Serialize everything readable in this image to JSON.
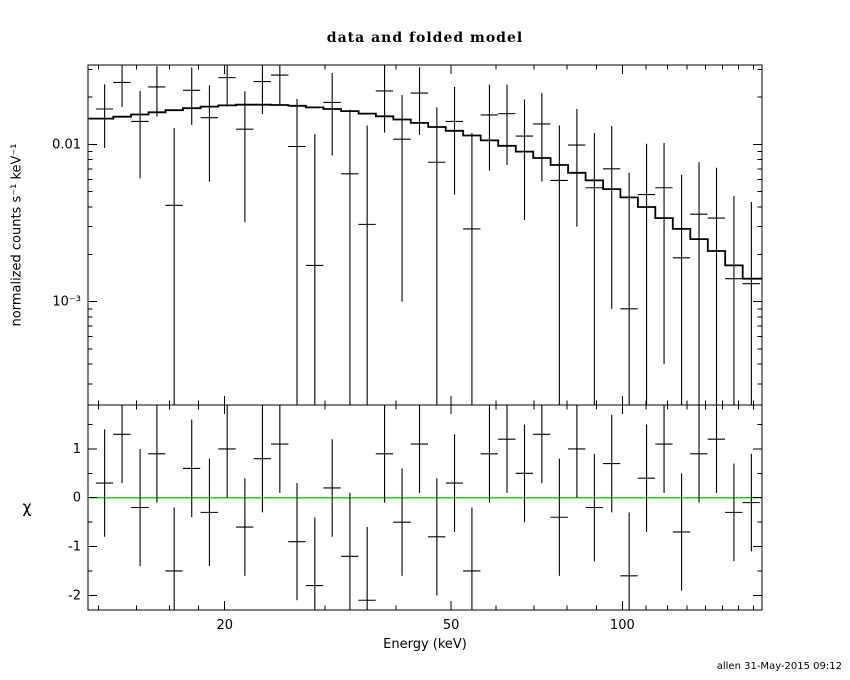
{
  "title": "data and folded model",
  "footer": "allen 31-May-2015 09:12",
  "colors": {
    "foreground": "#000000",
    "background": "#ffffff",
    "data": "#000000",
    "model": "#000000",
    "zero_line": "#00c300"
  },
  "chart_data": [
    {
      "type": "scatter",
      "panel": "top",
      "title": "data and folded model",
      "xlabel": "Energy (keV)",
      "ylabel": "normalized counts s⁻¹ keV⁻¹",
      "xscale": "log",
      "yscale": "log",
      "xlim": [
        11.5,
        176
      ],
      "ylim": [
        0.00022,
        0.032
      ],
      "grid": false,
      "legend": false,
      "x_tick_labels": [
        {
          "value": 20,
          "label": "20"
        },
        {
          "value": 50,
          "label": "50"
        },
        {
          "value": 100,
          "label": "100"
        }
      ],
      "y_tick_labels": [
        {
          "value": 0.01,
          "label": "0.01"
        },
        {
          "value": 0.001,
          "label": "10⁻³"
        }
      ],
      "series": [
        {
          "name": "data",
          "style": "cross",
          "x": [
            12.3,
            13.2,
            14.2,
            15.2,
            16.3,
            17.5,
            18.8,
            20.2,
            21.7,
            23.3,
            25.0,
            26.8,
            28.8,
            30.9,
            33.2,
            35.6,
            38.2,
            41.0,
            44.0,
            47.2,
            50.7,
            54.4,
            58.4,
            62.7,
            67.3,
            72.2,
            77.5,
            83.2,
            89.3,
            95.8,
            102.8,
            110.3,
            118.4,
            127.1,
            136.4,
            146.4,
            157.1,
            168.6
          ],
          "xerr": [
            0.43,
            0.46,
            0.5,
            0.53,
            0.57,
            0.61,
            0.66,
            0.71,
            0.76,
            0.82,
            0.88,
            0.94,
            1.01,
            1.08,
            1.16,
            1.25,
            1.34,
            1.44,
            1.54,
            1.65,
            1.77,
            1.9,
            2.04,
            2.19,
            2.36,
            2.53,
            2.71,
            2.91,
            3.13,
            3.35,
            3.6,
            3.86,
            4.14,
            4.45,
            4.77,
            5.12,
            5.5,
            5.9
          ],
          "y": [
            0.0168,
            0.0248,
            0.014,
            0.0232,
            0.0041,
            0.0221,
            0.0148,
            0.0266,
            0.0125,
            0.0251,
            0.0276,
            0.0097,
            0.0017,
            0.0185,
            0.0065,
            0.0031,
            0.0219,
            0.0108,
            0.0212,
            0.0077,
            0.014,
            0.0029,
            0.0154,
            0.0157,
            0.0113,
            0.0135,
            0.0059,
            0.0099,
            0.0053,
            0.007,
            0.0009,
            0.0048,
            0.0053,
            0.0019,
            0.0036,
            0.0034,
            0.0014,
            0.0013
          ],
          "yerr": [
            0.0073,
            0.0075,
            0.0079,
            0.0082,
            0.0086,
            0.0088,
            0.009,
            0.0092,
            0.0093,
            0.0095,
            0.0097,
            0.0098,
            0.0099,
            0.01,
            0.0101,
            0.0101,
            0.01,
            0.0098,
            0.0097,
            0.0095,
            0.0092,
            0.0089,
            0.0086,
            0.0083,
            0.008,
            0.0077,
            0.0073,
            0.0069,
            0.0065,
            0.0061,
            0.0057,
            0.0053,
            0.0049,
            0.0045,
            0.0041,
            0.0037,
            0.0033,
            0.003
          ]
        },
        {
          "name": "folded model",
          "style": "step",
          "x": [
            12.3,
            13.2,
            14.2,
            15.2,
            16.3,
            17.5,
            18.8,
            20.2,
            21.7,
            23.3,
            25.0,
            26.8,
            28.8,
            30.9,
            33.2,
            35.6,
            38.2,
            41.0,
            44.0,
            47.2,
            50.7,
            54.4,
            58.4,
            62.7,
            67.3,
            72.2,
            77.5,
            83.2,
            89.3,
            95.8,
            102.8,
            110.3,
            118.4,
            127.1,
            136.4,
            146.4,
            157.1,
            168.6
          ],
          "y": [
            0.0146,
            0.015,
            0.0155,
            0.016,
            0.0165,
            0.017,
            0.0174,
            0.0177,
            0.0179,
            0.0179,
            0.0178,
            0.0176,
            0.0172,
            0.0168,
            0.0163,
            0.0157,
            0.0151,
            0.0144,
            0.0137,
            0.0129,
            0.0122,
            0.0114,
            0.0106,
            0.0098,
            0.009,
            0.0082,
            0.0074,
            0.0066,
            0.0059,
            0.0052,
            0.0046,
            0.004,
            0.0034,
            0.0029,
            0.0025,
            0.0021,
            0.0017,
            0.0014
          ]
        }
      ]
    },
    {
      "type": "scatter",
      "panel": "bottom",
      "ylabel": "χ",
      "xscale": "log",
      "yscale": "linear",
      "xlim": [
        11.5,
        176
      ],
      "ylim": [
        -2.3,
        1.9
      ],
      "zero_line": 0,
      "y_tick_labels": [
        {
          "value": -2,
          "label": "-2"
        },
        {
          "value": -1,
          "label": "-1"
        },
        {
          "value": 0,
          "label": "0"
        },
        {
          "value": 1,
          "label": "1"
        }
      ],
      "series": [
        {
          "name": "residuals",
          "style": "cross",
          "x": [
            12.3,
            13.2,
            14.2,
            15.2,
            16.3,
            17.5,
            18.8,
            20.2,
            21.7,
            23.3,
            25.0,
            26.8,
            28.8,
            30.9,
            33.2,
            35.6,
            38.2,
            41.0,
            44.0,
            47.2,
            50.7,
            54.4,
            58.4,
            62.7,
            67.3,
            72.2,
            77.5,
            83.2,
            89.3,
            95.8,
            102.8,
            110.3,
            118.4,
            127.1,
            136.4,
            146.4,
            157.1,
            168.6
          ],
          "xerr": [
            0.43,
            0.46,
            0.5,
            0.53,
            0.57,
            0.61,
            0.66,
            0.71,
            0.76,
            0.82,
            0.88,
            0.94,
            1.01,
            1.08,
            1.16,
            1.25,
            1.34,
            1.44,
            1.54,
            1.65,
            1.77,
            1.9,
            2.04,
            2.19,
            2.36,
            2.53,
            2.71,
            2.91,
            3.13,
            3.35,
            3.6,
            3.86,
            4.14,
            4.45,
            4.77,
            5.12,
            5.5,
            5.9
          ],
          "y": [
            0.3,
            1.3,
            -0.2,
            0.9,
            -1.5,
            0.6,
            -0.3,
            1.0,
            -0.6,
            0.8,
            1.1,
            -0.9,
            -1.8,
            0.2,
            -1.2,
            -2.1,
            0.9,
            -0.5,
            1.1,
            -0.8,
            0.3,
            -1.5,
            0.9,
            1.2,
            0.5,
            1.3,
            -0.4,
            1.0,
            -0.2,
            0.7,
            -1.6,
            0.4,
            1.1,
            -0.7,
            0.9,
            1.2,
            -0.3,
            -0.1
          ],
          "yerr": [
            1.1,
            1.0,
            1.2,
            1.0,
            1.3,
            1.0,
            1.1,
            1.0,
            1.0,
            1.1,
            1.0,
            1.2,
            1.4,
            1.0,
            1.3,
            1.5,
            1.0,
            1.1,
            1.0,
            1.2,
            1.0,
            1.3,
            1.0,
            1.1,
            1.0,
            1.0,
            1.2,
            1.0,
            1.1,
            1.0,
            1.3,
            1.1,
            1.0,
            1.2,
            1.0,
            1.1,
            1.0,
            1.0
          ]
        }
      ]
    }
  ]
}
